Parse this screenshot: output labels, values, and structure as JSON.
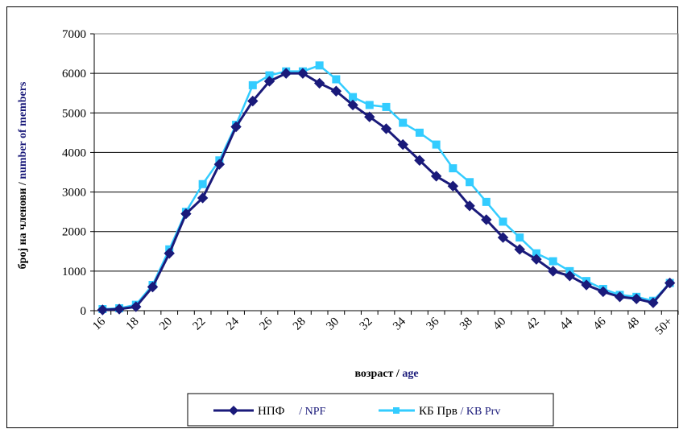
{
  "chart_data": {
    "type": "line",
    "x_tick_labels": [
      "16",
      "18",
      "20",
      "22",
      "24",
      "26",
      "28",
      "30",
      "32",
      "34",
      "36",
      "38",
      "40",
      "42",
      "44",
      "46",
      "48",
      "50+"
    ],
    "y_ticks": [
      0,
      1000,
      2000,
      3000,
      4000,
      5000,
      6000,
      7000
    ],
    "ylim": [
      0,
      7000
    ],
    "xlabel": {
      "native": "возраст  / ",
      "english": "age"
    },
    "ylabel": {
      "native": "број на членови / ",
      "english": "number of members"
    },
    "grid": true,
    "legend_placement": "bottom",
    "series": [
      {
        "name": "НПФ",
        "name_english": "/ NPF",
        "color": "#1a1a7a",
        "marker": "diamond",
        "values": [
          20,
          40,
          100,
          600,
          1450,
          2450,
          2850,
          3700,
          4650,
          5300,
          5800,
          6000,
          6000,
          5750,
          5550,
          5200,
          4900,
          4600,
          4200,
          3800,
          3400,
          3150,
          2650,
          2300,
          1850,
          1550,
          1300,
          1000,
          880,
          650,
          480,
          350,
          300,
          200,
          700
        ]
      },
      {
        "name": "КБ Прв",
        "name_english": "/ KB Prv",
        "color": "#33ccff",
        "marker": "square",
        "values": [
          40,
          60,
          150,
          650,
          1550,
          2500,
          3200,
          3800,
          4700,
          5700,
          5950,
          6050,
          6050,
          6200,
          5850,
          5400,
          5200,
          5150,
          4750,
          4500,
          4200,
          3600,
          3250,
          2750,
          2250,
          1850,
          1450,
          1250,
          1000,
          750,
          550,
          400,
          350,
          250,
          700
        ]
      }
    ]
  }
}
